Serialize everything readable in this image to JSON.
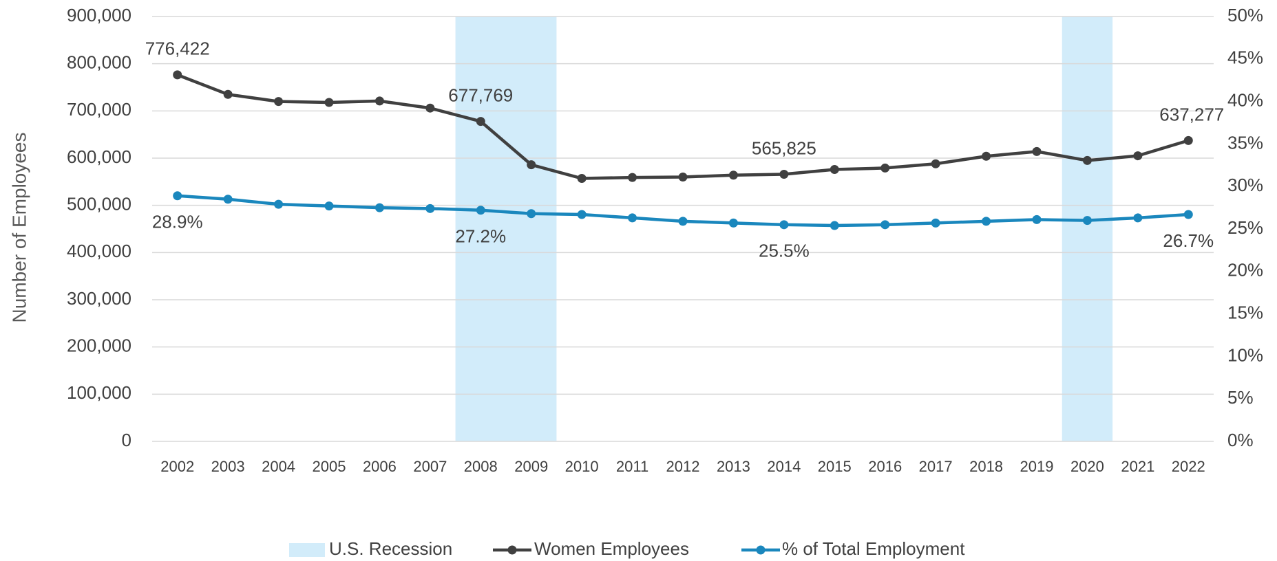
{
  "chart_data": {
    "type": "line",
    "y_label": "Number of Employees",
    "categories": [
      "2002",
      "2003",
      "2004",
      "2005",
      "2006",
      "2007",
      "2008",
      "2009",
      "2010",
      "2011",
      "2012",
      "2013",
      "2014",
      "2015",
      "2016",
      "2017",
      "2018",
      "2019",
      "2020",
      "2021",
      "2022"
    ],
    "recession": {
      "name": "U.S. Recession",
      "color": "#d2ecfa",
      "ranges": [
        [
          "2008",
          "2009"
        ],
        [
          "2020",
          "2020"
        ]
      ]
    },
    "series": [
      {
        "name": "Women Employees",
        "color": "#404040",
        "values": [
          776422,
          735000,
          720000,
          718000,
          721000,
          706000,
          677769,
          586000,
          557000,
          559000,
          560000,
          564000,
          565825,
          576000,
          579000,
          588000,
          604000,
          614000,
          595000,
          605000,
          637277
        ],
        "value_labels": [
          "776,422",
          null,
          null,
          null,
          null,
          null,
          "677,769",
          null,
          null,
          null,
          null,
          null,
          "565,825",
          null,
          null,
          null,
          null,
          null,
          null,
          null,
          "637,277"
        ]
      },
      {
        "name": "% of Total Employment",
        "color": "#1a87bd",
        "axis": "y2",
        "values": [
          28.9,
          28.5,
          27.9,
          27.7,
          27.5,
          27.4,
          27.2,
          26.8,
          26.7,
          26.3,
          25.9,
          25.7,
          25.5,
          25.4,
          25.5,
          25.7,
          25.9,
          26.1,
          26.0,
          26.3,
          26.7
        ],
        "value_labels": [
          "28.9%",
          null,
          null,
          null,
          null,
          null,
          "27.2%",
          null,
          null,
          null,
          null,
          null,
          "25.5%",
          null,
          null,
          null,
          null,
          null,
          null,
          null,
          "26.7%"
        ]
      }
    ],
    "ylim": [
      0,
      900000
    ],
    "yticks": [
      {
        "value": 0,
        "label": "0"
      },
      {
        "value": 100000,
        "label": "100,000"
      },
      {
        "value": 200000,
        "label": "200,000"
      },
      {
        "value": 300000,
        "label": "300,000"
      },
      {
        "value": 400000,
        "label": "400,000"
      },
      {
        "value": 500000,
        "label": "500,000"
      },
      {
        "value": 600000,
        "label": "600,000"
      },
      {
        "value": 700000,
        "label": "700,000"
      },
      {
        "value": 800000,
        "label": "800,000"
      },
      {
        "value": 900000,
        "label": "900,000"
      }
    ],
    "y2lim": [
      0,
      50
    ],
    "y2ticks": [
      {
        "value": 0,
        "label": "0%"
      },
      {
        "value": 5,
        "label": "5%"
      },
      {
        "value": 10,
        "label": "10%"
      },
      {
        "value": 15,
        "label": "15%"
      },
      {
        "value": 20,
        "label": "20%"
      },
      {
        "value": 25,
        "label": "25%"
      },
      {
        "value": 30,
        "label": "30%"
      },
      {
        "value": 35,
        "label": "35%"
      },
      {
        "value": 40,
        "label": "40%"
      },
      {
        "value": 45,
        "label": "45%"
      },
      {
        "value": 50,
        "label": "50%"
      }
    ],
    "grid": true,
    "legend": "bottom"
  }
}
